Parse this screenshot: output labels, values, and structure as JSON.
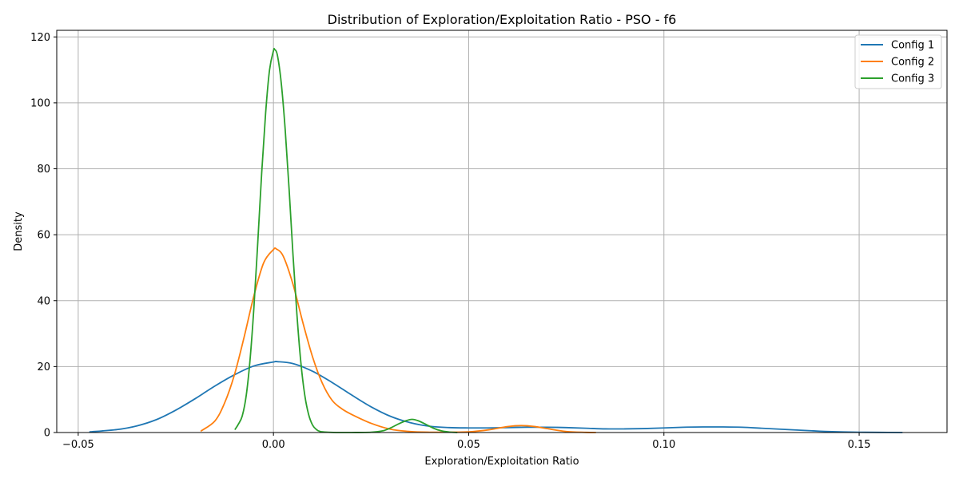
{
  "chart_data": {
    "type": "line",
    "title": "Distribution of Exploration/Exploitation Ratio - PSO - f6",
    "xlabel": "Exploration/Exploitation Ratio",
    "ylabel": "Density",
    "xlim": [
      -0.0555,
      0.1725
    ],
    "ylim": [
      0,
      122
    ],
    "x_ticks": [
      {
        "value": -0.05,
        "label": "−0.05"
      },
      {
        "value": 0.0,
        "label": "0.00"
      },
      {
        "value": 0.05,
        "label": "0.05"
      },
      {
        "value": 0.1,
        "label": "0.10"
      },
      {
        "value": 0.15,
        "label": "0.15"
      }
    ],
    "y_ticks": [
      {
        "value": 0,
        "label": "0"
      },
      {
        "value": 20,
        "label": "20"
      },
      {
        "value": 40,
        "label": "40"
      },
      {
        "value": 60,
        "label": "60"
      },
      {
        "value": 80,
        "label": "80"
      },
      {
        "value": 100,
        "label": "100"
      },
      {
        "value": 120,
        "label": "120"
      }
    ],
    "grid": true,
    "legend_position": "top-right",
    "series": [
      {
        "name": "Config 1",
        "color": "#1f77b4",
        "x": [
          -0.047,
          -0.04,
          -0.035,
          -0.03,
          -0.025,
          -0.02,
          -0.015,
          -0.01,
          -0.005,
          0.0,
          0.001,
          0.005,
          0.01,
          0.015,
          0.02,
          0.025,
          0.03,
          0.035,
          0.04,
          0.045,
          0.05,
          0.055,
          0.06,
          0.065,
          0.07,
          0.075,
          0.08,
          0.085,
          0.09,
          0.095,
          0.1,
          0.105,
          0.11,
          0.115,
          0.12,
          0.125,
          0.13,
          0.135,
          0.14,
          0.145,
          0.15,
          0.155,
          0.161
        ],
        "y": [
          0.2,
          0.9,
          2.0,
          3.9,
          6.8,
          10.3,
          14.1,
          17.5,
          20.2,
          21.4,
          21.5,
          20.9,
          18.6,
          15.2,
          11.4,
          7.8,
          4.9,
          3.0,
          1.9,
          1.5,
          1.4,
          1.4,
          1.5,
          1.6,
          1.6,
          1.5,
          1.3,
          1.1,
          1.1,
          1.2,
          1.4,
          1.6,
          1.7,
          1.7,
          1.6,
          1.3,
          1.0,
          0.7,
          0.4,
          0.2,
          0.1,
          0.05,
          0.0
        ]
      },
      {
        "name": "Config 2",
        "color": "#ff7f0e",
        "x": [
          -0.0185,
          -0.015,
          -0.0125,
          -0.01,
          -0.0075,
          -0.005,
          -0.0025,
          0.0,
          0.0007,
          0.0025,
          0.005,
          0.0075,
          0.01,
          0.0125,
          0.015,
          0.0175,
          0.02,
          0.025,
          0.03,
          0.035,
          0.04,
          0.045,
          0.05,
          0.055,
          0.06,
          0.0635,
          0.067,
          0.07,
          0.075,
          0.08,
          0.0825
        ],
        "y": [
          0.5,
          3.5,
          9.0,
          17.5,
          29.0,
          41.5,
          51.5,
          55.5,
          55.7,
          53.5,
          45.0,
          33.5,
          23.0,
          15.0,
          9.8,
          7.2,
          5.5,
          2.8,
          1.0,
          0.3,
          0.1,
          0.1,
          0.2,
          0.8,
          1.8,
          2.1,
          1.8,
          1.2,
          0.3,
          0.05,
          0.0
        ]
      },
      {
        "name": "Config 3",
        "color": "#2ca02c",
        "x": [
          -0.0098,
          -0.009,
          -0.008,
          -0.007,
          -0.006,
          -0.005,
          -0.004,
          -0.003,
          -0.002,
          -0.001,
          0.0,
          0.0003,
          0.001,
          0.002,
          0.003,
          0.004,
          0.005,
          0.006,
          0.007,
          0.008,
          0.009,
          0.01,
          0.011,
          0.012,
          0.014,
          0.017,
          0.02,
          0.025,
          0.028,
          0.03,
          0.032,
          0.034,
          0.0355,
          0.037,
          0.039,
          0.041,
          0.043,
          0.045,
          0.047
        ],
        "y": [
          1.0,
          2.5,
          5.0,
          11.0,
          22.0,
          38.0,
          58.0,
          79.0,
          97.0,
          110.0,
          115.8,
          116.2,
          114.5,
          106.0,
          92.0,
          74.0,
          54.0,
          36.0,
          21.5,
          11.5,
          5.5,
          2.3,
          0.9,
          0.3,
          0.1,
          0.0,
          0.0,
          0.1,
          0.5,
          1.4,
          2.6,
          3.6,
          4.0,
          3.6,
          2.5,
          1.3,
          0.5,
          0.15,
          0.0
        ]
      }
    ]
  }
}
